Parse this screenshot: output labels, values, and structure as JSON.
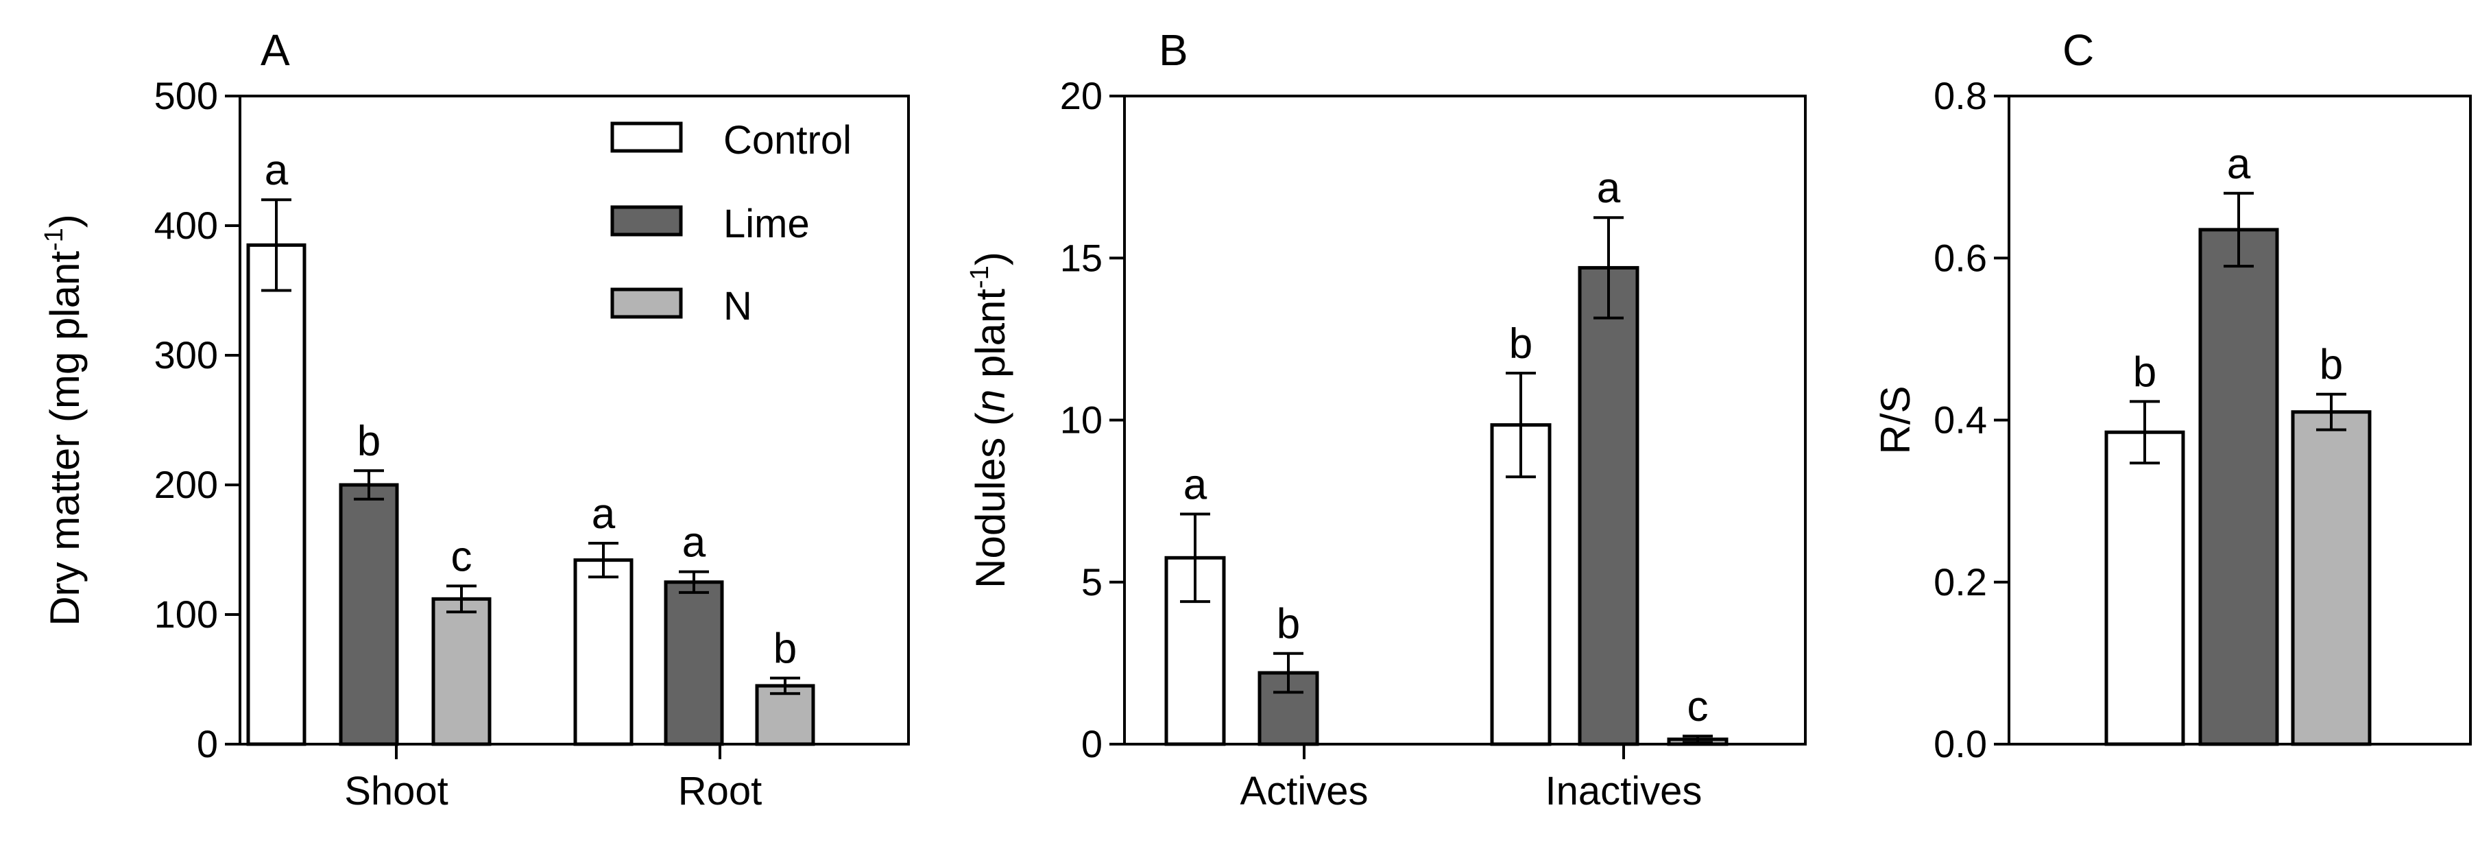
{
  "legend": {
    "entries": [
      {
        "label": "Control",
        "color": "#ffffff"
      },
      {
        "label": "Lime",
        "color": "#646464"
      },
      {
        "label": "N",
        "color": "#b4b4b4"
      }
    ]
  },
  "chart_data": [
    {
      "panel": "A",
      "type": "bar",
      "ylabel_main": "Dry matter (mg plant",
      "ylabel_sup": "-1",
      "ylabel_tail": ")",
      "ylim": [
        0,
        500
      ],
      "yticks": [
        "0",
        "100",
        "200",
        "300",
        "400",
        "500"
      ],
      "ytick_values": [
        0,
        100,
        200,
        300,
        400,
        500
      ],
      "categories": [
        "Shoot",
        "Root"
      ],
      "series": [
        {
          "name": "Control",
          "values": [
            385,
            142
          ],
          "errors": [
            35,
            13
          ],
          "letters": [
            "a",
            "a"
          ]
        },
        {
          "name": "Lime",
          "values": [
            200,
            125
          ],
          "errors": [
            11,
            8
          ],
          "letters": [
            "b",
            "a"
          ]
        },
        {
          "name": "N",
          "values": [
            112,
            45
          ],
          "errors": [
            10,
            6
          ],
          "letters": [
            "c",
            "b"
          ]
        }
      ]
    },
    {
      "panel": "B",
      "type": "bar",
      "ylabel_pre": "Nodules (",
      "ylabel_italic": "n",
      "ylabel_main": " plant",
      "ylabel_sup": "-1",
      "ylabel_tail": ")",
      "ylim": [
        0,
        20
      ],
      "yticks": [
        "0",
        "5",
        "10",
        "15",
        "20"
      ],
      "ytick_values": [
        0,
        5,
        10,
        15,
        20
      ],
      "categories": [
        "Actives",
        "Inactives"
      ],
      "series": [
        {
          "name": "Control",
          "values": [
            5.75,
            9.85
          ],
          "errors": [
            1.35,
            1.6
          ],
          "letters": [
            "a",
            "b"
          ]
        },
        {
          "name": "Lime",
          "values": [
            2.2,
            14.7
          ],
          "errors": [
            0.6,
            1.55
          ],
          "letters": [
            "b",
            "a"
          ]
        },
        {
          "name": "N",
          "values": [
            0,
            0.15
          ],
          "errors": [
            0,
            0.1
          ],
          "letters": [
            "",
            "c"
          ]
        }
      ]
    },
    {
      "panel": "C",
      "type": "bar",
      "ylabel_main": "R/S",
      "ylim": [
        0,
        0.8
      ],
      "yticks": [
        "0.0",
        "0.2",
        "0.4",
        "0.6",
        "0.8"
      ],
      "ytick_values": [
        0,
        0.2,
        0.4,
        0.6,
        0.8
      ],
      "categories": [
        ""
      ],
      "series": [
        {
          "name": "Control",
          "values": [
            0.385
          ],
          "errors": [
            0.038
          ],
          "letters": [
            "b"
          ]
        },
        {
          "name": "Lime",
          "values": [
            0.635
          ],
          "errors": [
            0.045
          ],
          "letters": [
            "a"
          ]
        },
        {
          "name": "N",
          "values": [
            0.41
          ],
          "errors": [
            0.022
          ],
          "letters": [
            "b"
          ]
        }
      ]
    }
  ]
}
